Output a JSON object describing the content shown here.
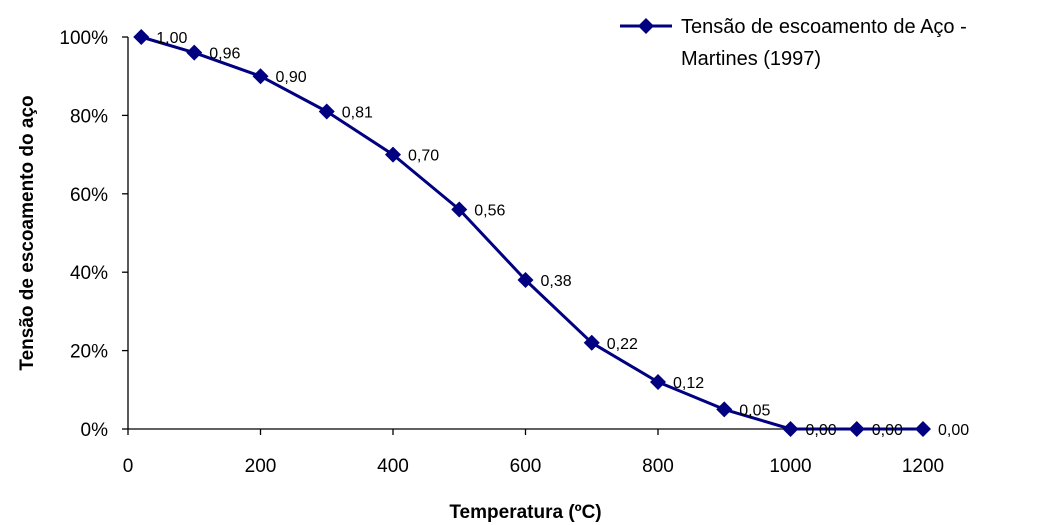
{
  "chart_data": {
    "type": "line",
    "x": [
      20,
      100,
      200,
      300,
      400,
      500,
      600,
      700,
      800,
      900,
      1000,
      1100,
      1200
    ],
    "series": [
      {
        "name": "Tensão de escoamento de Aço - Martines (1997)",
        "legend_lines": [
          "Tensão de escoamento de Aço -",
          "Martines (1997)"
        ],
        "values": [
          1.0,
          0.96,
          0.9,
          0.81,
          0.7,
          0.56,
          0.38,
          0.22,
          0.12,
          0.05,
          0.0,
          0.0,
          0.0
        ],
        "data_labels": [
          "1,00",
          "0,96",
          "0,90",
          "0,81",
          "0,70",
          "0,56",
          "0,38",
          "0,22",
          "0,12",
          "0,05",
          "0,00",
          "0,00",
          "0,00"
        ],
        "color": "#000080",
        "marker": "diamond"
      }
    ],
    "xlabel": "Temperatura (ºC)",
    "ylabel": "Tensão de escoamento do aço",
    "xlim": [
      0,
      1200
    ],
    "ylim": [
      0,
      1
    ],
    "xticks": [
      0,
      200,
      400,
      600,
      800,
      1000,
      1200
    ],
    "xtick_labels": [
      "0",
      "200",
      "400",
      "600",
      "800",
      "1000",
      "1200"
    ],
    "yticks": [
      0,
      0.2,
      0.4,
      0.6,
      0.8,
      1.0
    ],
    "ytick_labels": [
      "0%",
      "20%",
      "40%",
      "60%",
      "80%",
      "100%"
    ],
    "grid": false,
    "legend_position": "top-right"
  }
}
